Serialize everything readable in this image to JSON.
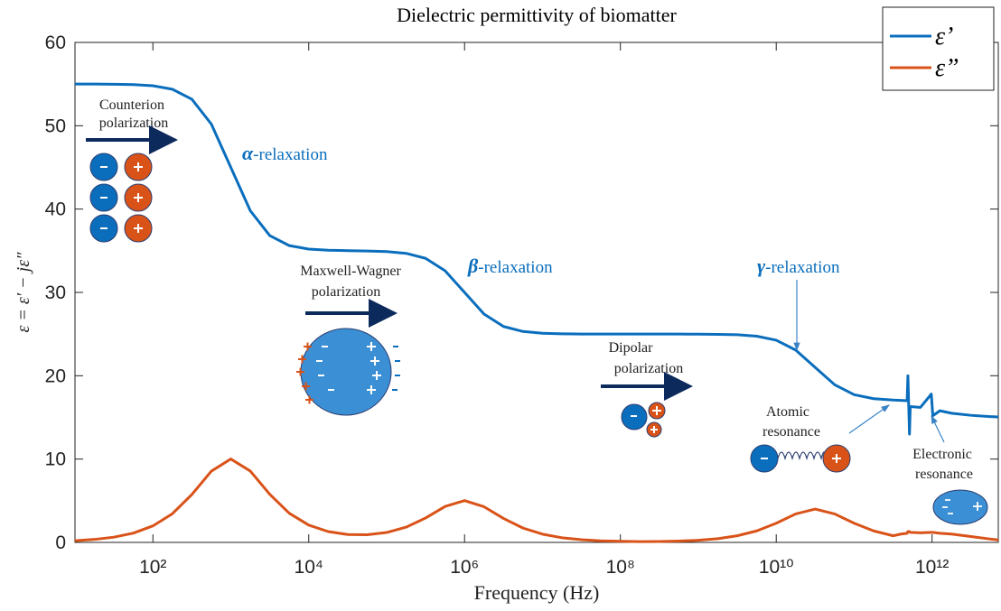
{
  "chart_data": {
    "type": "line",
    "title": "Dielectric permittivity of biomatter",
    "x_label": "Frequency (Hz)",
    "y_label": "ε = ε′ − jε″",
    "x_scale": "log",
    "xlim": [
      10.0,
      7079000000000.0
    ],
    "ylim": [
      0,
      60
    ],
    "xticks": [
      {
        "value": 100.0,
        "label": "10²"
      },
      {
        "value": 10000.0,
        "label": "10⁴"
      },
      {
        "value": 1000000.0,
        "label": "10⁶"
      },
      {
        "value": 100000000.0,
        "label": "10⁸"
      },
      {
        "value": 10000000000.0,
        "label": "10¹⁰"
      },
      {
        "value": 1000000000000.0,
        "label": "10¹²"
      }
    ],
    "yticks": [
      0,
      10,
      20,
      30,
      40,
      50,
      60
    ],
    "legend": "upper right",
    "x": [
      10.0,
      17.78,
      31.62,
      56.23,
      100.0,
      177.8,
      316.2,
      562.3,
      1000.0,
      1778.0,
      3162.0,
      5623.0,
      10000.0,
      17780.0,
      31620.0,
      56230.0,
      100000.0,
      177800.0,
      316200.0,
      562300.0,
      1000000.0,
      1778000.0,
      3162000.0,
      5623000.0,
      10000000.0,
      17780000.0,
      31620000.0,
      56230000.0,
      100000000.0,
      177800000.0,
      316200000.0,
      562300000.0,
      1000000000.0,
      1778000000.0,
      3162000000.0,
      5623000000.0,
      10000000000.0,
      17780000000.0,
      31620000000.0,
      56230000000.0,
      100000000000.0,
      177800000000.0,
      316200000000.0,
      398100000000.0,
      478600000000.0,
      489800000000.0,
      512900000000.0,
      524800000000.0,
      707900000000.0,
      977200000000.0,
      1023000000000.0,
      1259000000000.0,
      1778000000000.0,
      3162000000000.0,
      5623000000000.0,
      7079000000000.0
    ],
    "series": [
      {
        "name": "ε’",
        "color": "#0a6ebd",
        "values": [
          55.0,
          55.0,
          54.98,
          54.94,
          54.8,
          54.38,
          53.18,
          50.2,
          45,
          39.8,
          36.82,
          35.62,
          35.2,
          35.06,
          35.01,
          34.97,
          34.9,
          34.69,
          34.09,
          32.6,
          30,
          27.4,
          25.91,
          25.31,
          25.1,
          25.03,
          25.01,
          25,
          25,
          25,
          25,
          25,
          24.99,
          24.97,
          24.92,
          24.75,
          24.27,
          23.08,
          21,
          18.92,
          17.73,
          17.25,
          17.08,
          17.05,
          17.0,
          20.0,
          13.0,
          16.3,
          16.2,
          17.8,
          15.2,
          15.8,
          15.5,
          15.25,
          15.1,
          15.05
        ]
      },
      {
        "name": "ε”",
        "color": "#d95319",
        "values": [
          0.2,
          0.36,
          0.63,
          1.12,
          1.98,
          3.44,
          5.75,
          8.55,
          10.01,
          8.56,
          5.77,
          3.5,
          2.08,
          1.3,
          0.95,
          0.92,
          1.19,
          1.83,
          2.93,
          4.31,
          5.02,
          4.28,
          2.88,
          1.72,
          0.99,
          0.56,
          0.32,
          0.19,
          0.13,
          0.1,
          0.11,
          0.16,
          0.26,
          0.45,
          0.8,
          1.38,
          2.3,
          3.42,
          4.0,
          3.42,
          2.3,
          1.38,
          0.8,
          1.0,
          1.1,
          1.3,
          1.3,
          1.2,
          1.15,
          1.2,
          1.2,
          1.1,
          1.0,
          0.7,
          0.4,
          0.3
        ]
      }
    ],
    "annotations": [
      {
        "lines": [
          "Counterion",
          "polarization"
        ]
      },
      {
        "symbol": "α",
        "text": "-relaxation"
      },
      {
        "lines": [
          "Maxwell-Wagner",
          "polarization"
        ]
      },
      {
        "symbol": "β",
        "text": "-relaxation"
      },
      {
        "lines": [
          "Dipolar",
          "polarization"
        ]
      },
      {
        "symbol": "γ",
        "text": "-relaxation"
      },
      {
        "lines": [
          "Atomic",
          "resonance"
        ]
      },
      {
        "lines": [
          "Electronic",
          "resonance"
        ]
      }
    ]
  }
}
